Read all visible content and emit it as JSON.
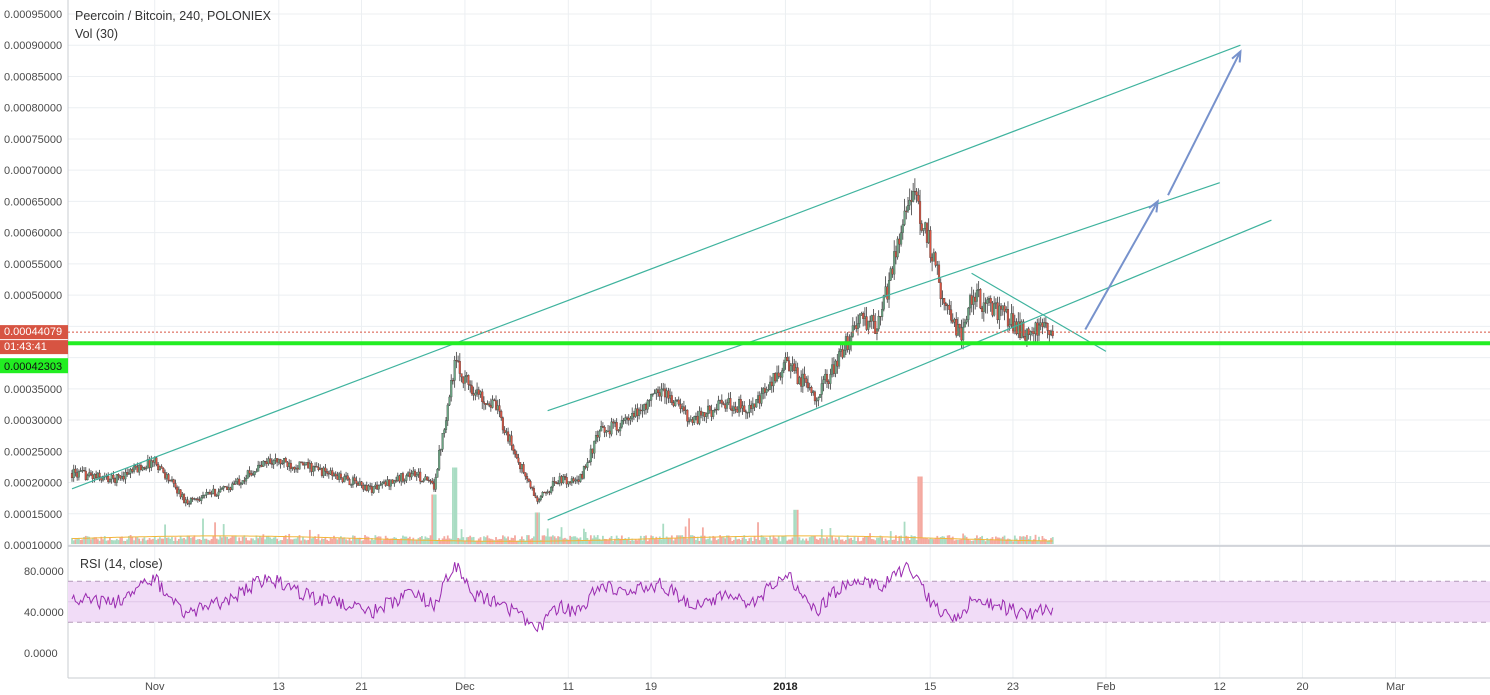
{
  "header": {
    "title": "Peercoin / Bitcoin, 240, POLONIEX",
    "volume_label": "Vol (30)",
    "rsi_label": "RSI (14, close)"
  },
  "price_labels": {
    "last_price": "0.00044079",
    "countdown": "01:43:41",
    "support_level": "0.00042303"
  },
  "colors": {
    "bull": "#6ba583",
    "bear": "#d75442",
    "trend_line": "#3fb39e",
    "arrow": "#7792cc",
    "support": "#22ee22",
    "rsi_line": "#9a2bb0",
    "rsi_band": "#f1dcf7",
    "vol_ma": "#f2b63a",
    "last_price": "#d75442"
  },
  "chart_data": {
    "type": "candlestick",
    "title": "Peercoin / Bitcoin, 240, POLONIEX",
    "y_ticks": [
      "0.00095000",
      "0.00090000",
      "0.00085000",
      "0.00080000",
      "0.00075000",
      "0.00070000",
      "0.00065000",
      "0.00060000",
      "0.00055000",
      "0.00050000",
      "0.00045000",
      "0.00040000",
      "0.00035000",
      "0.00030000",
      "0.00025000",
      "0.00020000",
      "0.00015000",
      "0.00010000"
    ],
    "ylim": [
      0.0001,
      0.00095
    ],
    "x_ticks": [
      "Nov",
      "13",
      "21",
      "Dec",
      "11",
      "19",
      "2018",
      "15",
      "23",
      "Feb",
      "12",
      "20",
      "Mar"
    ],
    "x_ticks_bold": [
      "2018"
    ],
    "price_path": [
      {
        "date": "2017-10-24",
        "price": 0.000215
      },
      {
        "date": "2017-10-28",
        "price": 0.000205
      },
      {
        "date": "2017-11-01",
        "price": 0.000235
      },
      {
        "date": "2017-11-04",
        "price": 0.00017
      },
      {
        "date": "2017-11-08",
        "price": 0.00019
      },
      {
        "date": "2017-11-12",
        "price": 0.000235
      },
      {
        "date": "2017-11-16",
        "price": 0.000225
      },
      {
        "date": "2017-11-22",
        "price": 0.00019
      },
      {
        "date": "2017-11-26",
        "price": 0.000215
      },
      {
        "date": "2017-11-28",
        "price": 0.000195
      },
      {
        "date": "2017-11-30",
        "price": 0.00039
      },
      {
        "date": "2017-12-02",
        "price": 0.000345
      },
      {
        "date": "2017-12-04",
        "price": 0.00032
      },
      {
        "date": "2017-12-06",
        "price": 0.00024
      },
      {
        "date": "2017-12-08",
        "price": 0.00017
      },
      {
        "date": "2017-12-10",
        "price": 0.000205
      },
      {
        "date": "2017-12-12",
        "price": 0.0002
      },
      {
        "date": "2017-12-14",
        "price": 0.00028
      },
      {
        "date": "2017-12-17",
        "price": 0.0003
      },
      {
        "date": "2017-12-20",
        "price": 0.00035
      },
      {
        "date": "2017-12-23",
        "price": 0.0003
      },
      {
        "date": "2017-12-26",
        "price": 0.000325
      },
      {
        "date": "2017-12-29",
        "price": 0.00032
      },
      {
        "date": "2018-01-01",
        "price": 0.00039
      },
      {
        "date": "2018-01-04",
        "price": 0.00034
      },
      {
        "date": "2018-01-06",
        "price": 0.00039
      },
      {
        "date": "2018-01-08",
        "price": 0.00046
      },
      {
        "date": "2018-01-10",
        "price": 0.00045
      },
      {
        "date": "2018-01-11",
        "price": 0.00052
      },
      {
        "date": "2018-01-13",
        "price": 0.00067
      },
      {
        "date": "2018-01-15",
        "price": 0.00058
      },
      {
        "date": "2018-01-16",
        "price": 0.00051
      },
      {
        "date": "2018-01-18",
        "price": 0.00043
      },
      {
        "date": "2018-01-19",
        "price": 0.0005
      },
      {
        "date": "2018-01-22",
        "price": 0.00047
      },
      {
        "date": "2018-01-24",
        "price": 0.00044
      },
      {
        "date": "2018-01-27",
        "price": 0.000445
      }
    ],
    "volume_spikes": [
      {
        "date": "2017-11-28",
        "value": 0.55
      },
      {
        "date": "2017-11-30",
        "value": 0.85
      },
      {
        "date": "2017-12-08",
        "value": 0.35
      },
      {
        "date": "2018-01-02",
        "value": 0.38
      },
      {
        "date": "2018-01-14",
        "value": 0.75
      }
    ],
    "rsi": {
      "ylim": [
        0,
        100
      ],
      "y_ticks": [
        "80.0000",
        "40.0000",
        "0.0000"
      ],
      "tick_values": [
        80,
        40,
        0
      ],
      "band": [
        30,
        70
      ],
      "points": [
        {
          "date": "2017-10-24",
          "value": 55
        },
        {
          "date": "2017-10-28",
          "value": 48
        },
        {
          "date": "2017-11-01",
          "value": 72
        },
        {
          "date": "2017-11-04",
          "value": 38
        },
        {
          "date": "2017-11-08",
          "value": 52
        },
        {
          "date": "2017-11-12",
          "value": 74
        },
        {
          "date": "2017-11-16",
          "value": 55
        },
        {
          "date": "2017-11-22",
          "value": 40
        },
        {
          "date": "2017-11-26",
          "value": 60
        },
        {
          "date": "2017-11-28",
          "value": 45
        },
        {
          "date": "2017-11-30",
          "value": 88
        },
        {
          "date": "2017-12-02",
          "value": 55
        },
        {
          "date": "2017-12-04",
          "value": 50
        },
        {
          "date": "2017-12-06",
          "value": 38
        },
        {
          "date": "2017-12-08",
          "value": 22
        },
        {
          "date": "2017-12-10",
          "value": 45
        },
        {
          "date": "2017-12-12",
          "value": 40
        },
        {
          "date": "2017-12-14",
          "value": 65
        },
        {
          "date": "2017-12-17",
          "value": 60
        },
        {
          "date": "2017-12-20",
          "value": 68
        },
        {
          "date": "2017-12-23",
          "value": 45
        },
        {
          "date": "2017-12-26",
          "value": 55
        },
        {
          "date": "2017-12-29",
          "value": 50
        },
        {
          "date": "2018-01-01",
          "value": 78
        },
        {
          "date": "2018-01-04",
          "value": 40
        },
        {
          "date": "2018-01-06",
          "value": 62
        },
        {
          "date": "2018-01-08",
          "value": 72
        },
        {
          "date": "2018-01-10",
          "value": 65
        },
        {
          "date": "2018-01-11",
          "value": 70
        },
        {
          "date": "2018-01-13",
          "value": 84
        },
        {
          "date": "2018-01-15",
          "value": 50
        },
        {
          "date": "2018-01-16",
          "value": 40
        },
        {
          "date": "2018-01-18",
          "value": 33
        },
        {
          "date": "2018-01-19",
          "value": 52
        },
        {
          "date": "2018-01-22",
          "value": 45
        },
        {
          "date": "2018-01-24",
          "value": 38
        },
        {
          "date": "2018-01-27",
          "value": 44
        }
      ]
    },
    "annotations": {
      "support_price": 0.00042303,
      "last_price": 0.00044079,
      "trend_lines": [
        {
          "from": {
            "date": "2017-10-24",
            "price": 0.00019
          },
          "to": {
            "date": "2018-02-14",
            "price": 0.0009
          }
        },
        {
          "from": {
            "date": "2017-12-09",
            "price": 0.000315
          },
          "to": {
            "date": "2018-02-12",
            "price": 0.00068
          }
        },
        {
          "from": {
            "date": "2017-12-09",
            "price": 0.00014
          },
          "to": {
            "date": "2018-02-17",
            "price": 0.00062
          }
        },
        {
          "from": {
            "date": "2018-01-19",
            "price": 0.000535
          },
          "to": {
            "date": "2018-02-01",
            "price": 0.00041
          }
        }
      ],
      "arrows": [
        {
          "from": {
            "date": "2018-01-30",
            "price": 0.000445
          },
          "to": {
            "date": "2018-02-06",
            "price": 0.00065
          }
        },
        {
          "from": {
            "date": "2018-02-07",
            "price": 0.00066
          },
          "to": {
            "date": "2018-02-14",
            "price": 0.00089
          }
        }
      ]
    }
  }
}
